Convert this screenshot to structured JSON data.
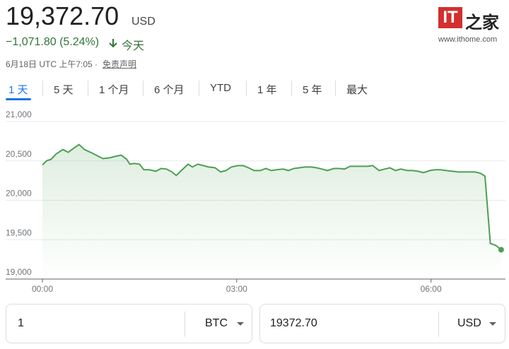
{
  "header": {
    "price": "19,372.70",
    "currency": "USD",
    "change": "−1,071.80 (5.24%)",
    "period": "今天",
    "timestamp": "6月18日 UTC 上午7:05 ·",
    "disclaimer": "免责声明"
  },
  "logo": {
    "mark": "IT",
    "name": "之家",
    "url": "www.ithome.com"
  },
  "tabs": [
    "1 天",
    "5 天",
    "1 个月",
    "6 个月",
    "YTD",
    "1 年",
    "5 年",
    "最大"
  ],
  "chart_data": {
    "type": "line",
    "color": "#4d9f53",
    "x": [
      0,
      4,
      8,
      13,
      19,
      24,
      29,
      34,
      39,
      46,
      51,
      56,
      62,
      67,
      73,
      78,
      81,
      85,
      90,
      94,
      99,
      105,
      110,
      115,
      120,
      124,
      128,
      135,
      139,
      144,
      149,
      154,
      160,
      165,
      170,
      175,
      181,
      186,
      191,
      196,
      202,
      207,
      212,
      217,
      223,
      228,
      233,
      238,
      243,
      249,
      254,
      259,
      264,
      270,
      275,
      280,
      285,
      291,
      296,
      301,
      306,
      312,
      317,
      322,
      327,
      332,
      338,
      343,
      348,
      353,
      359,
      364,
      369,
      374,
      380,
      385,
      390,
      395,
      401,
      406,
      410,
      415,
      420,
      425
    ],
    "values": [
      20449,
      20502,
      20520,
      20591,
      20644,
      20609,
      20662,
      20707,
      20644,
      20600,
      20564,
      20529,
      20538,
      20556,
      20573,
      20520,
      20458,
      20467,
      20458,
      20387,
      20387,
      20369,
      20404,
      20396,
      20360,
      20316,
      20369,
      20458,
      20422,
      20458,
      20440,
      20422,
      20413,
      20360,
      20378,
      20422,
      20440,
      20440,
      20413,
      20378,
      20378,
      20404,
      20378,
      20387,
      20396,
      20378,
      20404,
      20413,
      20422,
      20422,
      20413,
      20396,
      20378,
      20404,
      20404,
      20396,
      20431,
      20431,
      20431,
      20431,
      20440,
      20378,
      20396,
      20413,
      20378,
      20396,
      20378,
      20378,
      20369,
      20351,
      20378,
      20387,
      20387,
      20378,
      20369,
      20360,
      20360,
      20360,
      20360,
      20342,
      20307,
      19453,
      19427,
      19372.7
    ],
    "xlim": [
      0,
      429
    ],
    "ylim": [
      19000,
      21000
    ],
    "xticks": [
      {
        "value": 0,
        "label": "00:00"
      },
      {
        "value": 180,
        "label": "03:00"
      },
      {
        "value": 360,
        "label": "06:00"
      }
    ],
    "yticks": [
      {
        "value": 19000,
        "label": "19,000"
      },
      {
        "value": 19500,
        "label": "19,500"
      },
      {
        "value": 20000,
        "label": "20,000"
      },
      {
        "value": 20500,
        "label": "20,500"
      },
      {
        "value": 21000,
        "label": "21,000"
      }
    ],
    "grid": true
  },
  "converter": {
    "amount": "1",
    "from": "BTC",
    "result": "19372.70",
    "to": "USD"
  }
}
